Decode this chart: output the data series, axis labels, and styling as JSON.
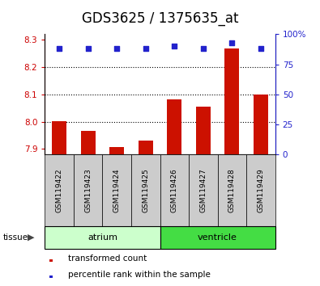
{
  "title": "GDS3625 / 1375635_at",
  "samples": [
    "GSM119422",
    "GSM119423",
    "GSM119424",
    "GSM119425",
    "GSM119426",
    "GSM119427",
    "GSM119428",
    "GSM119429"
  ],
  "transformed_counts": [
    8.003,
    7.965,
    7.908,
    7.93,
    8.082,
    8.055,
    8.268,
    8.1
  ],
  "percentile_ranks": [
    88,
    88,
    88,
    88,
    90,
    88,
    93,
    88
  ],
  "ylim_left": [
    7.88,
    8.32
  ],
  "ylim_right": [
    0,
    100
  ],
  "yticks_left": [
    7.9,
    8.0,
    8.1,
    8.2,
    8.3
  ],
  "yticks_right": [
    0,
    25,
    50,
    75,
    100
  ],
  "groups": [
    {
      "label": "atrium",
      "start": 0,
      "end": 3,
      "color": "#ccffcc"
    },
    {
      "label": "ventricle",
      "start": 4,
      "end": 7,
      "color": "#44dd44"
    }
  ],
  "bar_color": "#cc1100",
  "dot_color": "#2222cc",
  "left_tick_color": "#cc0000",
  "right_tick_color": "#2222cc",
  "sample_bg_color": "#cccccc",
  "group_label_fontsize": 8,
  "title_fontsize": 12,
  "bar_width": 0.5
}
